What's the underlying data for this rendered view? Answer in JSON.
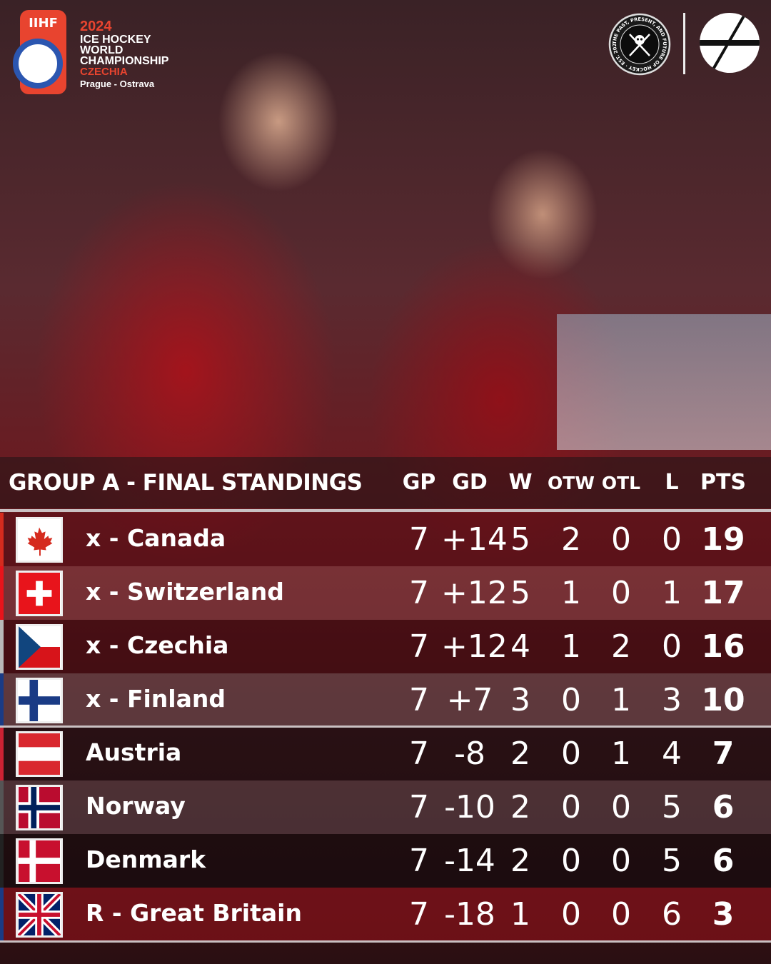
{
  "branding": {
    "iihf": "IIHF",
    "year": "2024",
    "event_line1": "ICE HOCKEY",
    "event_line2": "WORLD",
    "event_line3": "CHAMPIONSHIP",
    "host": "CZECHIA",
    "cities": "Prague - Ostrava",
    "badge_text": "THE PAST, PRESENT, AND FUTURE OF HOCKEY · EST. 2022"
  },
  "table": {
    "title": "GROUP A - FINAL STANDINGS",
    "columns": [
      "GP",
      "GD",
      "W",
      "OTW",
      "OTL",
      "L",
      "PTS"
    ],
    "rows": [
      {
        "team": "x - Canada",
        "flag": "canada",
        "gp": "7",
        "gd": "+14",
        "w": "5",
        "otw": "2",
        "otl": "0",
        "l": "0",
        "pts": "19"
      },
      {
        "team": "x - Switzerland",
        "flag": "switzerland",
        "gp": "7",
        "gd": "+12",
        "w": "5",
        "otw": "1",
        "otl": "0",
        "l": "1",
        "pts": "17"
      },
      {
        "team": "x - Czechia",
        "flag": "czechia",
        "gp": "7",
        "gd": "+12",
        "w": "4",
        "otw": "1",
        "otl": "2",
        "l": "0",
        "pts": "16"
      },
      {
        "team": "x - Finland",
        "flag": "finland",
        "gp": "7",
        "gd": "+7",
        "w": "3",
        "otw": "0",
        "otl": "1",
        "l": "3",
        "pts": "10"
      },
      {
        "team": "Austria",
        "flag": "austria",
        "gp": "7",
        "gd": "-8",
        "w": "2",
        "otw": "0",
        "otl": "1",
        "l": "4",
        "pts": "7"
      },
      {
        "team": "Norway",
        "flag": "norway",
        "gp": "7",
        "gd": "-10",
        "w": "2",
        "otw": "0",
        "otl": "0",
        "l": "5",
        "pts": "6"
      },
      {
        "team": "Denmark",
        "flag": "denmark",
        "gp": "7",
        "gd": "-14",
        "w": "2",
        "otw": "0",
        "otl": "0",
        "l": "5",
        "pts": "6"
      },
      {
        "team": "R - Great Britain",
        "flag": "great-britain",
        "gp": "7",
        "gd": "-18",
        "w": "1",
        "otw": "0",
        "otl": "0",
        "l": "6",
        "pts": "3"
      }
    ]
  },
  "colors": {
    "accent_red": "#e8442f",
    "iihf_blue": "#2b56b0"
  }
}
